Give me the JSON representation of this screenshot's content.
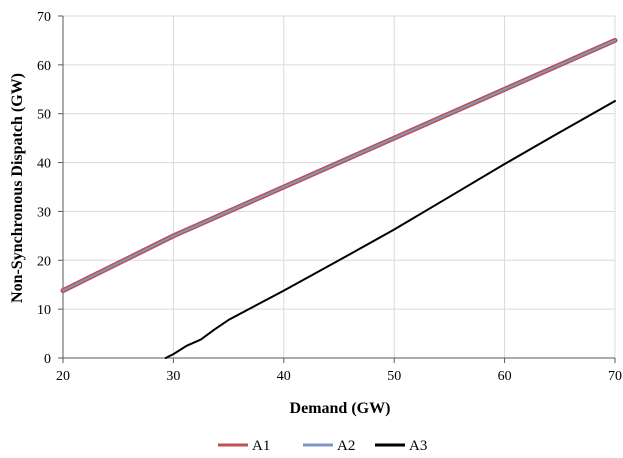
{
  "chart_data": {
    "type": "line",
    "title": "",
    "xlabel": "Demand (GW)",
    "ylabel": "Non-Synchronous Dispatch (GW)",
    "xlim": [
      20,
      70
    ],
    "ylim": [
      0,
      70
    ],
    "x_ticks": [
      20,
      30,
      40,
      50,
      60,
      70
    ],
    "y_ticks": [
      0,
      10,
      20,
      30,
      40,
      50,
      60,
      70
    ],
    "grid": true,
    "legend_position": "bottom",
    "series": [
      {
        "name": "A1",
        "color": "#c0504d",
        "x": [
          20,
          30,
          40,
          50,
          60,
          70
        ],
        "y": [
          13.8,
          25.0,
          35.0,
          45.0,
          55.0,
          65.0
        ]
      },
      {
        "name": "A2",
        "color": "#7f95c8",
        "x": [
          20,
          30,
          40,
          50,
          60,
          70
        ],
        "y": [
          13.8,
          25.0,
          35.0,
          45.0,
          55.0,
          65.0
        ]
      },
      {
        "name": "A3",
        "color": "#000000",
        "x": [
          29.3,
          30,
          31.2,
          32.5,
          33.7,
          35,
          40,
          45,
          50,
          55,
          60,
          65,
          70
        ],
        "y": [
          0,
          0.8,
          2.5,
          3.8,
          5.8,
          7.8,
          13.8,
          20.0,
          26.3,
          33.0,
          39.7,
          46.2,
          52.6
        ]
      }
    ]
  }
}
